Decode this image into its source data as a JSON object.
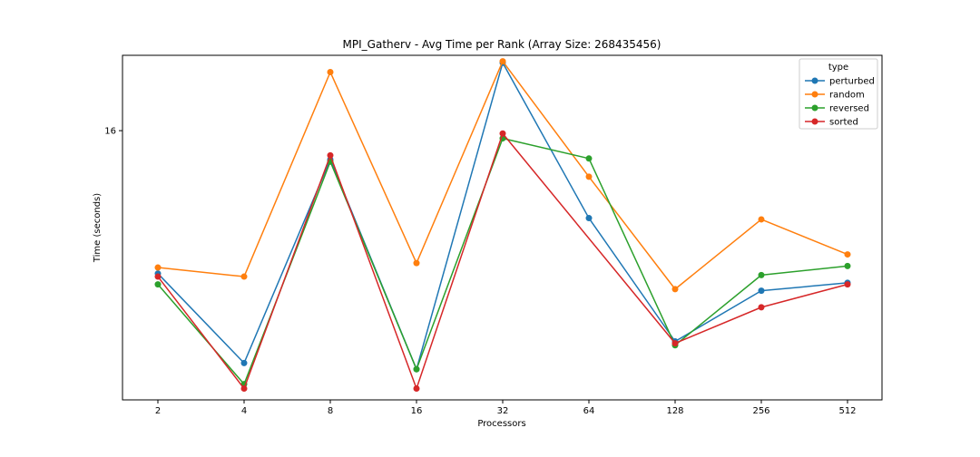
{
  "chart_data": {
    "type": "line",
    "title": "MPI_Gatherv - Avg Time per Rank (Array Size: 268435456)",
    "xlabel": "Processors",
    "ylabel": "Time (seconds)",
    "y_scale": "log",
    "ylim": [
      6.6,
      20.5
    ],
    "yticks": [
      16
    ],
    "grid": false,
    "legend_title": "type",
    "legend_position": "top-right",
    "categories": [
      "2",
      "4",
      "8",
      "16",
      "32",
      "64",
      "128",
      "256",
      "512"
    ],
    "series": [
      {
        "name": "perturbed",
        "color": "#1f77b4",
        "values": [
          10.0,
          7.45,
          14.55,
          7.3,
          20.0,
          12.0,
          8.0,
          9.45,
          9.7
        ]
      },
      {
        "name": "random",
        "color": "#ff7f0e",
        "values": [
          10.2,
          9.9,
          19.4,
          10.35,
          20.1,
          13.75,
          9.5,
          11.95,
          10.65
        ]
      },
      {
        "name": "reversed",
        "color": "#2ca02c",
        "values": [
          9.65,
          6.95,
          14.45,
          7.3,
          15.6,
          14.6,
          7.9,
          9.95,
          10.25
        ]
      },
      {
        "name": "sorted",
        "color": "#d62728",
        "values": [
          9.9,
          6.85,
          14.75,
          6.85,
          15.85,
          null,
          7.95,
          8.95,
          9.65
        ]
      }
    ]
  }
}
